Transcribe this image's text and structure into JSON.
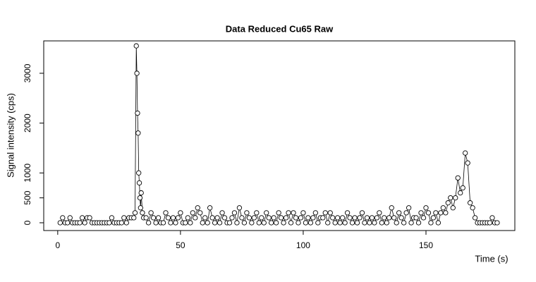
{
  "chart_data": {
    "type": "line",
    "title": "Data Reduced Cu65 Raw",
    "x_label": "Time (s)",
    "y_label": "Signal intensity (cps)",
    "color": "#000000",
    "xlim": [
      -5.7,
      186.2
    ],
    "xticks": [
      0,
      50,
      100,
      150
    ],
    "ylim": [
      -156,
      3650
    ],
    "yticks": [
      0,
      500,
      1000,
      2000,
      3000
    ],
    "x": [
      1,
      2,
      3,
      4,
      5,
      6,
      7,
      8,
      9,
      10,
      11,
      12,
      13,
      14,
      15,
      16,
      17,
      18,
      19,
      20,
      21,
      22,
      23,
      24,
      25,
      26,
      27,
      28,
      29,
      30,
      31,
      31.5,
      32,
      32.25,
      32.5,
      32.75,
      33,
      33.25,
      33.5,
      33.75,
      34,
      34.5,
      35,
      36,
      37,
      38,
      39,
      40,
      41,
      42,
      43,
      44,
      45,
      46,
      47,
      48,
      49,
      50,
      51,
      52,
      53,
      54,
      55,
      56,
      57,
      58,
      59,
      60,
      61,
      62,
      63,
      64,
      65,
      66,
      67,
      68,
      69,
      70,
      71,
      72,
      73,
      74,
      75,
      76,
      77,
      78,
      79,
      80,
      81,
      82,
      83,
      84,
      85,
      86,
      87,
      88,
      89,
      90,
      91,
      92,
      93,
      94,
      95,
      96,
      97,
      98,
      99,
      100,
      101,
      102,
      103,
      104,
      105,
      106,
      107,
      108,
      109,
      110,
      111,
      112,
      113,
      114,
      115,
      116,
      117,
      118,
      119,
      120,
      121,
      122,
      123,
      124,
      125,
      126,
      127,
      128,
      129,
      130,
      131,
      132,
      133,
      134,
      135,
      136,
      137,
      138,
      139,
      140,
      141,
      142,
      143,
      144,
      145,
      146,
      147,
      148,
      149,
      150,
      151,
      152,
      153,
      154,
      155,
      156,
      157,
      158,
      159,
      160,
      161,
      162,
      163,
      164,
      165,
      166,
      167,
      168,
      169,
      170,
      171,
      172,
      173,
      174,
      175,
      176,
      177,
      178,
      179
    ],
    "values": [
      0,
      100,
      0,
      0,
      100,
      0,
      0,
      0,
      0,
      100,
      0,
      100,
      100,
      0,
      0,
      0,
      0,
      0,
      0,
      0,
      0,
      100,
      0,
      0,
      0,
      0,
      100,
      0,
      100,
      100,
      100,
      200,
      3550,
      3000,
      2200,
      1800,
      1000,
      800,
      500,
      300,
      600,
      200,
      100,
      100,
      0,
      200,
      100,
      0,
      100,
      0,
      0,
      200,
      100,
      0,
      100,
      0,
      100,
      200,
      0,
      0,
      100,
      0,
      200,
      100,
      300,
      200,
      0,
      100,
      0,
      300,
      100,
      0,
      100,
      0,
      200,
      100,
      0,
      0,
      100,
      200,
      0,
      300,
      100,
      0,
      200,
      100,
      0,
      100,
      200,
      0,
      100,
      0,
      200,
      100,
      0,
      100,
      0,
      200,
      100,
      0,
      100,
      200,
      0,
      200,
      100,
      0,
      100,
      200,
      0,
      100,
      0,
      100,
      200,
      0,
      100,
      100,
      200,
      0,
      200,
      100,
      0,
      100,
      0,
      100,
      0,
      200,
      100,
      0,
      100,
      0,
      100,
      200,
      0,
      100,
      0,
      100,
      0,
      100,
      200,
      0,
      100,
      0,
      100,
      300,
      100,
      0,
      200,
      100,
      0,
      200,
      300,
      0,
      100,
      100,
      0,
      200,
      100,
      300,
      200,
      0,
      100,
      200,
      0,
      200,
      300,
      200,
      400,
      500,
      300,
      500,
      900,
      600,
      700,
      1400,
      1200,
      400,
      300,
      100,
      0,
      0,
      0,
      0,
      0,
      0,
      100,
      0,
      0
    ]
  }
}
